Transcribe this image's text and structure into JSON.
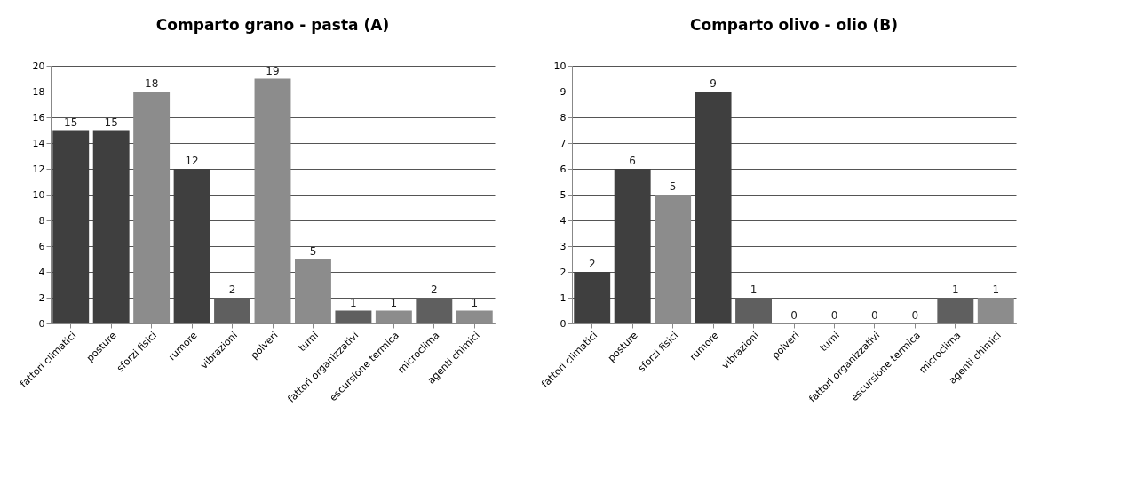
{
  "chart_data": [
    {
      "type": "bar",
      "title": "Comparto grano - pasta (A)",
      "categories": [
        "fattori climatici",
        "posture",
        "sforzi fisici",
        "rumore",
        "vibrazioni",
        "polveri",
        "turni",
        "fattori organizzativi",
        "escursione termica",
        "microclima",
        "agenti chimici"
      ],
      "values": [
        15,
        15,
        18,
        12,
        2,
        19,
        5,
        1,
        1,
        2,
        1
      ],
      "colors": [
        "#3f3f3f",
        "#3f3f3f",
        "#8c8c8c",
        "#3f3f3f",
        "#5f5f5f",
        "#8c8c8c",
        "#8c8c8c",
        "#5f5f5f",
        "#8c8c8c",
        "#5f5f5f",
        "#8c8c8c"
      ],
      "ylim": [
        0,
        20
      ],
      "yticks": [
        0,
        2,
        4,
        6,
        8,
        10,
        12,
        14,
        16,
        18,
        20
      ],
      "grid": "y",
      "legend": false,
      "data_labels": true
    },
    {
      "type": "bar",
      "title": "Comparto olivo - olio (B)",
      "categories": [
        "fattori climatici",
        "posture",
        "sforzi fisici",
        "rumore",
        "vibrazioni",
        "polveri",
        "turni",
        "fattori organizzativi",
        "escursione termica",
        "microclima",
        "agenti chimici"
      ],
      "values": [
        2,
        6,
        5,
        9,
        1,
        0,
        0,
        0,
        0,
        1,
        1
      ],
      "colors": [
        "#3f3f3f",
        "#3f3f3f",
        "#8c8c8c",
        "#3f3f3f",
        "#5f5f5f",
        "#5f5f5f",
        "#5f5f5f",
        "#5f5f5f",
        "#5f5f5f",
        "#5f5f5f",
        "#8c8c8c"
      ],
      "ylim": [
        0,
        10
      ],
      "yticks": [
        0,
        1,
        2,
        3,
        4,
        5,
        6,
        7,
        8,
        9,
        10
      ],
      "grid": "y",
      "legend": false,
      "data_labels": true
    }
  ]
}
